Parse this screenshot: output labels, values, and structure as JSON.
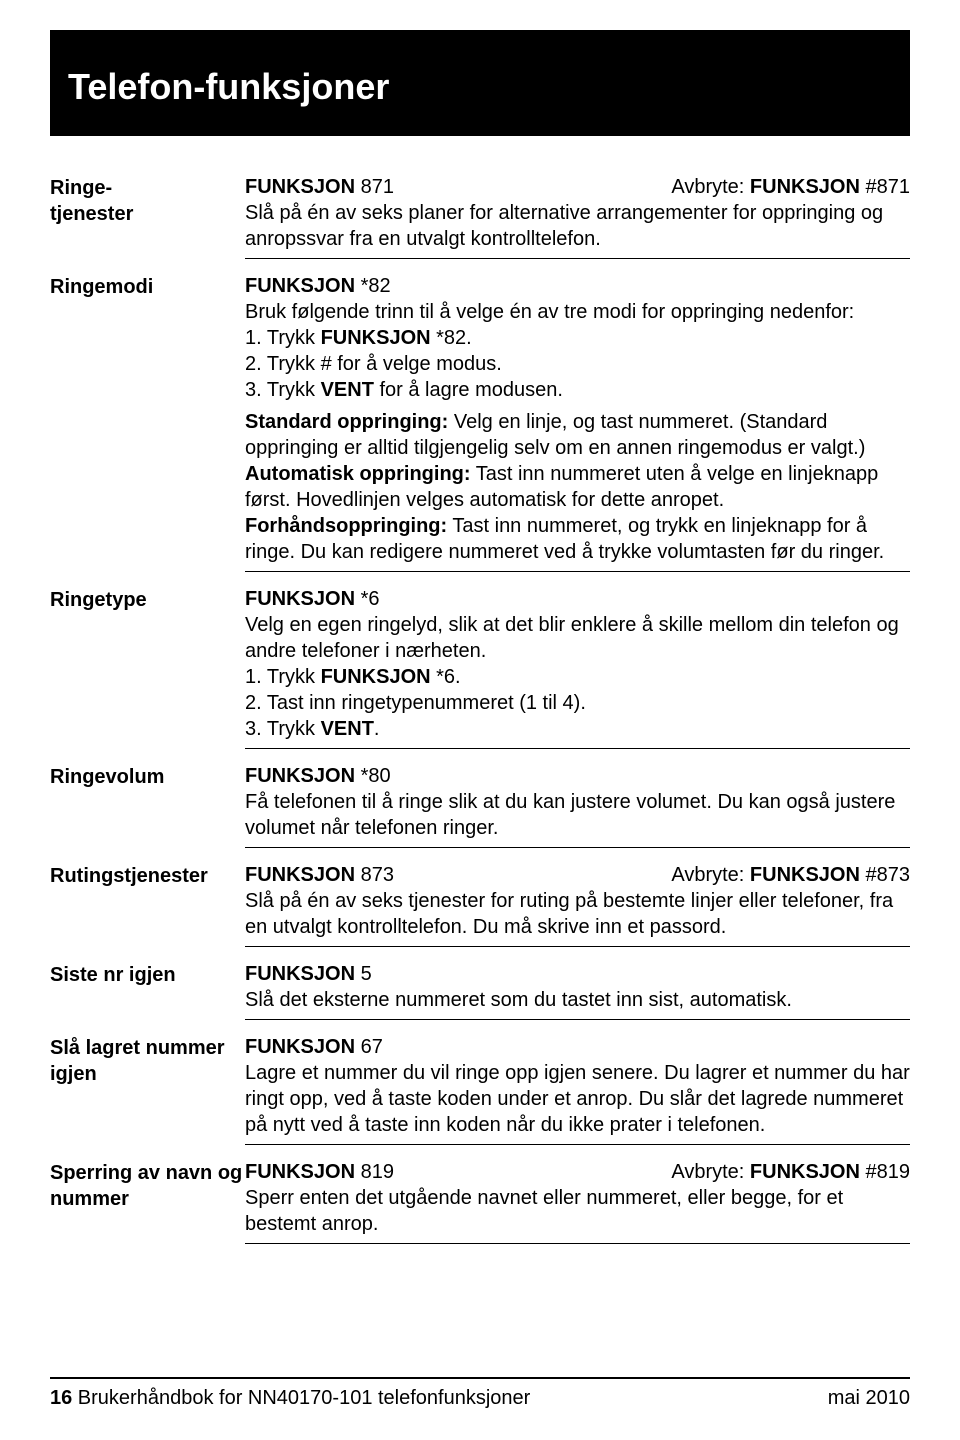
{
  "title": "Telefon-funksjoner",
  "entries": [
    {
      "label": "Ringe-\ntjenester",
      "code": "FUNKSJON 871",
      "cancel": "Avbryte: FUNKSJON #871",
      "body_html": "Slå på én av seks planer for alternative arrangementer for oppringing og anropssvar fra en utvalgt kontrolltelefon."
    },
    {
      "label": "Ringemodi",
      "code": "FUNKSJON *82",
      "cancel": "",
      "noborder": true,
      "body_html": "Bruk følgende trinn til å velge én av tre modi for oppringing nedenfor:<br>1. Trykk <span class=\"b\">FUNKSJON</span> *82.<br>2. Trykk # for å velge modus.<br>3. Trykk <span class=\"b\">VENT</span> for å lagre modusen."
    },
    {
      "label": "",
      "code": "",
      "cancel": "",
      "body_html": "<span class=\"b\">Standard oppringing:</span> Velg en linje, og tast nummeret. (Standard oppringing er alltid tilgjengelig selv om en annen ringemodus er valgt.)<br><span class=\"b\">Automatisk oppringing:</span> Tast inn nummeret uten å velge en linjeknapp først. Hovedlinjen velges automatisk for dette anropet.<br><span class=\"b\">Forhåndsoppringing:</span> Tast inn nummeret, og trykk en linjeknapp for å ringe. Du kan redigere nummeret ved å trykke volumtasten før du ringer."
    },
    {
      "label": "Ringetype",
      "code": "FUNKSJON *6",
      "cancel": "",
      "body_html": "Velg en egen ringelyd, slik at det blir enklere å skille mellom din telefon og andre telefoner i nærheten.<br>1. Trykk <span class=\"b\">FUNKSJON</span> *6.<br>2. Tast inn ringetypenummeret (1 til 4).<br>3. Trykk <span class=\"b\">VENT</span>."
    },
    {
      "label": "Ringevolum",
      "code": "FUNKSJON *80",
      "cancel": "",
      "body_html": "Få telefonen til å ringe slik at du kan justere volumet. Du kan også justere volumet når telefonen ringer."
    },
    {
      "label": "Rutingstjenester",
      "code": "FUNKSJON 873",
      "cancel": "Avbryte: FUNKSJON #873",
      "body_html": "Slå på én av seks tjenester for ruting på bestemte linjer eller telefoner, fra en utvalgt kontrolltelefon. Du må skrive inn et passord."
    },
    {
      "label": "Siste nr igjen",
      "code": "FUNKSJON 5",
      "cancel": "",
      "body_html": "Slå det eksterne nummeret som du tastet inn sist, automatisk."
    },
    {
      "label": "Slå lagret nummer igjen",
      "code": "FUNKSJON 67",
      "cancel": "",
      "body_html": "Lagre et nummer du vil ringe opp igjen senere. Du lagrer et nummer du har ringt opp, ved å taste koden under et anrop. Du slår det lagrede nummeret på nytt ved å taste inn koden når du ikke prater i telefonen."
    },
    {
      "label": "Sperring av navn og nummer",
      "code": "FUNKSJON 819",
      "cancel": "Avbryte: FUNKSJON #819",
      "body_html": "Sperr enten det utgående navnet eller nummeret, eller begge, for et bestemt anrop."
    }
  ],
  "footer": {
    "left_prefix": "16",
    "left_text": " Brukerhåndbok for NN40170-101 telefonfunksjoner",
    "right": "mai 2010"
  }
}
